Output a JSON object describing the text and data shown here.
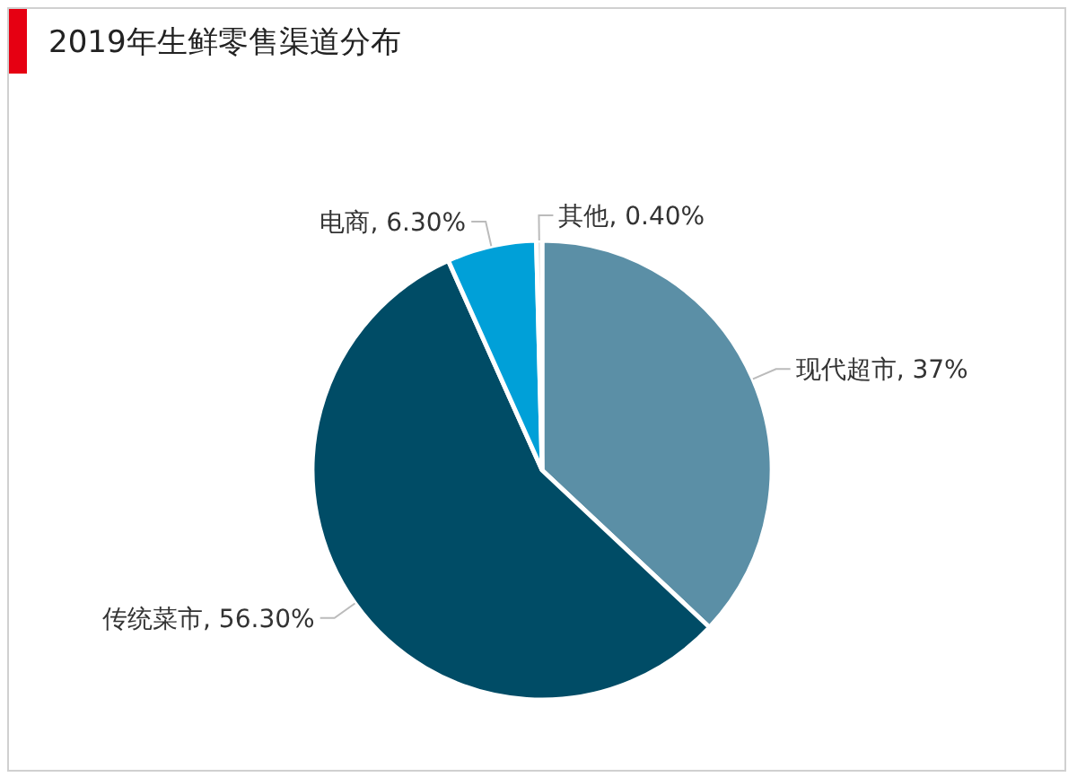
{
  "chart_data": {
    "type": "pie",
    "title": "2019年生鲜零售渠道分布",
    "categories": [
      "现代超市",
      "传统菜市",
      "电商",
      "其他"
    ],
    "values": [
      37,
      56.3,
      6.3,
      0.4
    ],
    "value_labels": [
      "37%",
      "56.30%",
      "6.30%",
      "0.40%"
    ],
    "colors": [
      "#5b8fa6",
      "#004c66",
      "#00a0d8",
      "#d9d9d9"
    ]
  }
}
